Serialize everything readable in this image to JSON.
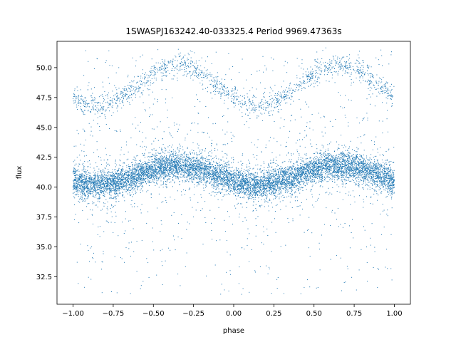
{
  "chart_data": {
    "type": "scatter",
    "title": "1SWASPJ163242.40-033325.4 Period 9969.47363s",
    "xlabel": "phase",
    "ylabel": "flux",
    "xlim": [
      -1.1,
      1.1
    ],
    "ylim": [
      30.2,
      52.2
    ],
    "x_ticks": [
      -1.0,
      -0.75,
      -0.5,
      -0.25,
      0.0,
      0.25,
      0.5,
      0.75,
      1.0
    ],
    "x_tick_labels": [
      "−1.00",
      "−0.75",
      "−0.50",
      "−0.25",
      "0.00",
      "0.25",
      "0.50",
      "0.75",
      "1.00"
    ],
    "y_ticks": [
      32.5,
      35.0,
      37.5,
      40.0,
      42.5,
      45.0,
      47.5,
      50.0
    ],
    "y_tick_labels": [
      "32.5",
      "35.0",
      "37.5",
      "40.0",
      "42.5",
      "45.0",
      "47.5",
      "50.0"
    ],
    "grid": false,
    "series": [
      {
        "color": "#1f77b4",
        "phase_range": [
          -1.0,
          1.0
        ],
        "main_band": {
          "mean_flux": 41.0,
          "amplitude": 0.8,
          "peak_phases": [
            -0.35,
            0.65
          ],
          "minimum_phases": [
            -0.85,
            0.15
          ],
          "spread": 1.0
        },
        "upper_band": {
          "mean_flux": 48.5,
          "amplitude": 1.7,
          "peak_phases": [
            -0.35,
            0.65
          ],
          "minimum_phases": [
            -0.85,
            0.15
          ],
          "spread": 0.8
        },
        "outlier_flux_range": [
          31.0,
          51.5
        ]
      }
    ]
  }
}
